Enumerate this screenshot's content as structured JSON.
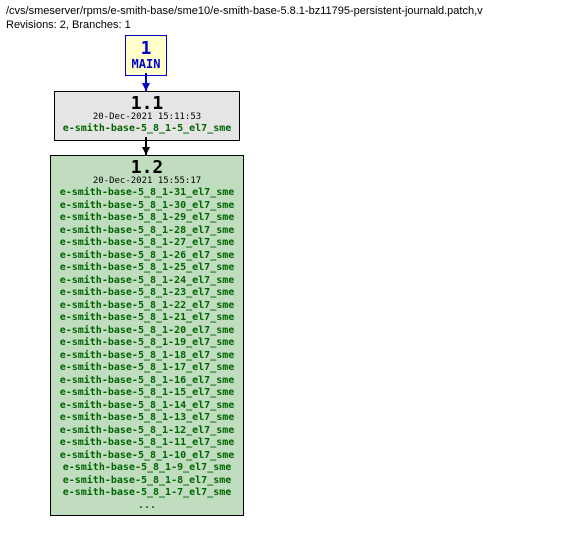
{
  "header": {
    "path": "/cvs/smeserver/rpms/e-smith-base/sme10/e-smith-base-5.8.1-bz11795-persistent-journald.patch,v",
    "info": "Revisions: 2, Branches: 1"
  },
  "main_node": {
    "title": "1",
    "subtitle": "MAIN",
    "border_color": "#0000cc",
    "bg_color": "#ffffcc",
    "text_color": "#0000cc"
  },
  "rev1": {
    "version": "1.1",
    "date": "20-Dec-2021 15:11:53",
    "tags": [
      "e-smith-base-5_8_1-5_el7_sme"
    ],
    "border_color": "#000000",
    "bg_color": "#e5e5e5",
    "text_color": "#006400"
  },
  "rev2": {
    "version": "1.2",
    "date": "20-Dec-2021 15:55:17",
    "tags": [
      "e-smith-base-5_8_1-31_el7_sme",
      "e-smith-base-5_8_1-30_el7_sme",
      "e-smith-base-5_8_1-29_el7_sme",
      "e-smith-base-5_8_1-28_el7_sme",
      "e-smith-base-5_8_1-27_el7_sme",
      "e-smith-base-5_8_1-26_el7_sme",
      "e-smith-base-5_8_1-25_el7_sme",
      "e-smith-base-5_8_1-24_el7_sme",
      "e-smith-base-5_8_1-23_el7_sme",
      "e-smith-base-5_8_1-22_el7_sme",
      "e-smith-base-5_8_1-21_el7_sme",
      "e-smith-base-5_8_1-20_el7_sme",
      "e-smith-base-5_8_1-19_el7_sme",
      "e-smith-base-5_8_1-18_el7_sme",
      "e-smith-base-5_8_1-17_el7_sme",
      "e-smith-base-5_8_1-16_el7_sme",
      "e-smith-base-5_8_1-15_el7_sme",
      "e-smith-base-5_8_1-14_el7_sme",
      "e-smith-base-5_8_1-13_el7_sme",
      "e-smith-base-5_8_1-12_el7_sme",
      "e-smith-base-5_8_1-11_el7_sme",
      "e-smith-base-5_8_1-10_el7_sme",
      "e-smith-base-5_8_1-9_el7_sme",
      "e-smith-base-5_8_1-8_el7_sme",
      "e-smith-base-5_8_1-7_el7_sme"
    ],
    "ellipsis": "...",
    "border_color": "#000000",
    "bg_color": "#c0ddc0",
    "text_color": "#006400"
  }
}
